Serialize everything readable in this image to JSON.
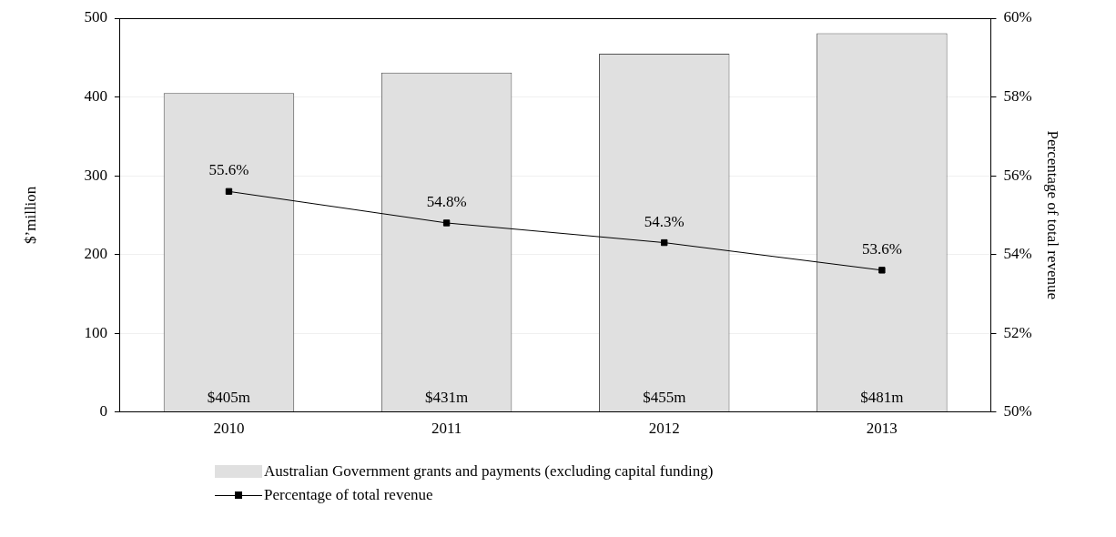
{
  "chart_data": {
    "type": "bar",
    "categories": [
      "2010",
      "2011",
      "2012",
      "2013"
    ],
    "ylabel": "$’million",
    "y2label": "Percentage of total revenue",
    "ylim": [
      0,
      500
    ],
    "yticks": [
      0,
      100,
      200,
      300,
      400,
      500
    ],
    "y2lim": [
      50,
      60
    ],
    "y2ticks": [
      {
        "value": 50,
        "label": "50%"
      },
      {
        "value": 52,
        "label": "52%"
      },
      {
        "value": 54,
        "label": "54%"
      },
      {
        "value": 56,
        "label": "56%"
      },
      {
        "value": 58,
        "label": "58%"
      },
      {
        "value": 60,
        "label": "60%"
      }
    ],
    "grid": "y",
    "legend": "bottom",
    "marker": "square",
    "series": [
      {
        "name": "Australian Government grants and payments (excluding capital funding)",
        "color": "#e0e0e0",
        "values": [
          405,
          431,
          455,
          481
        ],
        "value_labels": [
          "$405m",
          "$431m",
          "$455m",
          "$481m"
        ]
      },
      {
        "name": "Percentage of total revenue",
        "type": "line",
        "axis": "y2",
        "color": "#000000",
        "values": [
          55.6,
          54.8,
          54.3,
          53.6
        ],
        "value_labels": [
          "55.6%",
          "54.8%",
          "54.3%",
          "53.6%"
        ]
      }
    ]
  }
}
